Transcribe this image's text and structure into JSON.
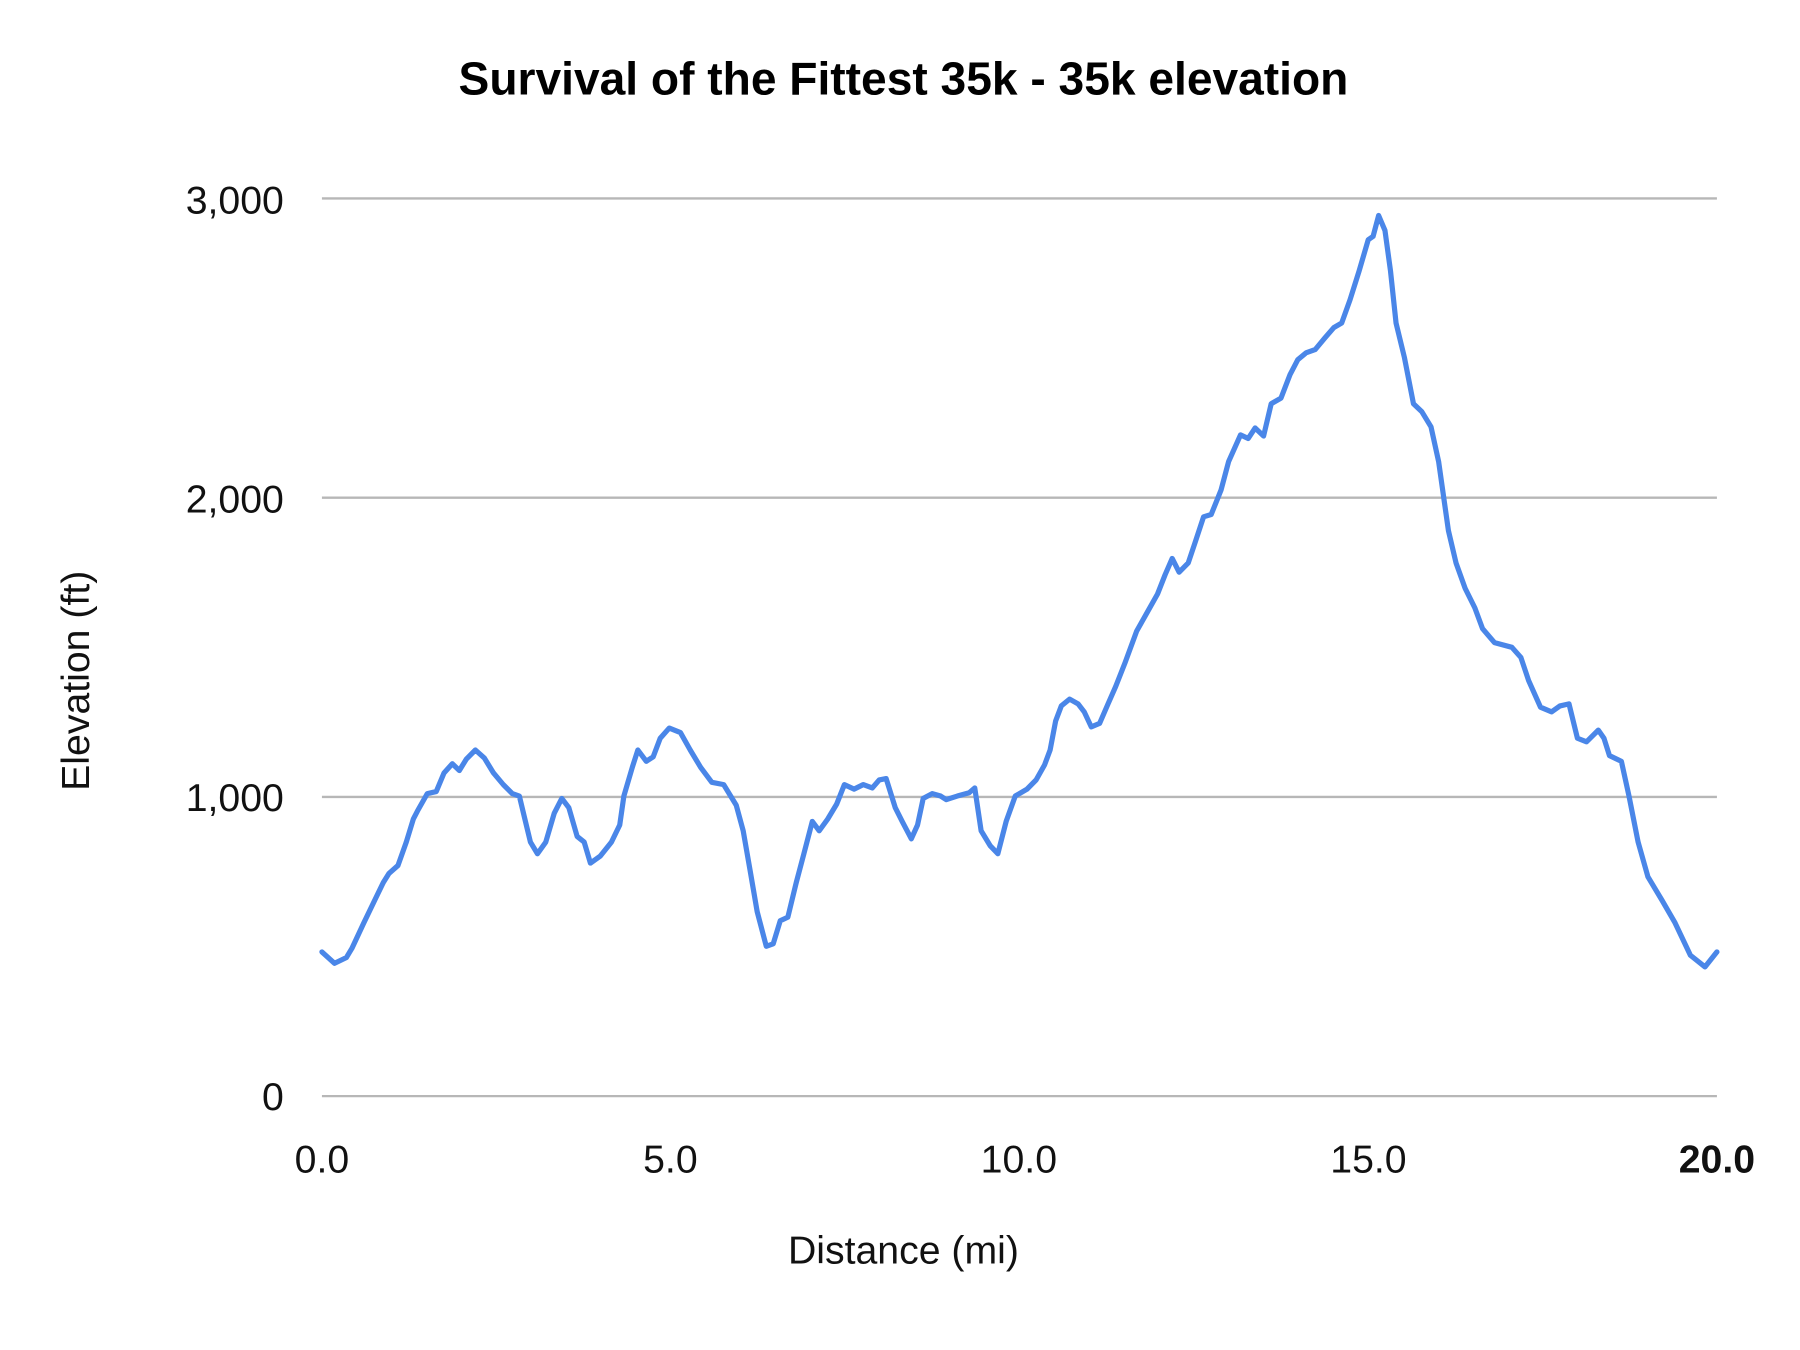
{
  "chart_data": {
    "type": "line",
    "title": "Survival of the Fittest 35k - 35k elevation",
    "xlabel": "Distance (mi)",
    "ylabel": "Elevation (ft)",
    "xlim": [
      0,
      20
    ],
    "ylim": [
      0,
      3000
    ],
    "grid": "horizontal",
    "legend": "none",
    "line_color": "#4a86e8",
    "x_ticks": [
      "0.0",
      "5.0",
      "10.0",
      "15.0",
      "20.0"
    ],
    "x_tick_values": [
      0,
      5,
      10,
      15,
      20
    ],
    "y_ticks": [
      "0",
      "1,000",
      "2,000",
      "3,000"
    ],
    "y_tick_values": [
      0,
      1000,
      2000,
      3000
    ],
    "x": [
      0.0,
      0.18,
      0.35,
      0.43,
      0.6,
      0.76,
      0.88,
      0.96,
      1.09,
      1.21,
      1.31,
      1.37,
      1.51,
      1.64,
      1.75,
      1.87,
      1.97,
      2.07,
      2.2,
      2.33,
      2.46,
      2.6,
      2.73,
      2.83,
      2.91,
      2.99,
      3.09,
      3.21,
      3.33,
      3.44,
      3.54,
      3.66,
      3.76,
      3.85,
      3.99,
      4.15,
      4.27,
      4.33,
      4.45,
      4.53,
      4.65,
      4.75,
      4.85,
      4.98,
      5.14,
      5.28,
      5.43,
      5.59,
      5.76,
      5.94,
      6.04,
      6.14,
      6.24,
      6.37,
      6.47,
      6.57,
      6.68,
      6.8,
      6.91,
      7.03,
      7.13,
      7.25,
      7.38,
      7.49,
      7.63,
      7.76,
      7.89,
      7.99,
      8.09,
      8.22,
      8.32,
      8.45,
      8.54,
      8.62,
      8.75,
      8.87,
      8.95,
      9.11,
      9.28,
      9.36,
      9.45,
      9.58,
      9.69,
      9.81,
      9.94,
      10.11,
      10.24,
      10.36,
      10.44,
      10.52,
      10.6,
      10.72,
      10.84,
      10.93,
      11.03,
      11.15,
      11.27,
      11.38,
      11.51,
      11.68,
      11.84,
      11.98,
      12.09,
      12.19,
      12.29,
      12.42,
      12.52,
      12.64,
      12.75,
      12.89,
      13.0,
      13.17,
      13.28,
      13.38,
      13.5,
      13.61,
      13.75,
      13.88,
      13.99,
      14.11,
      14.24,
      14.38,
      14.51,
      14.62,
      14.74,
      14.87,
      15.0,
      15.07,
      15.15,
      15.24,
      15.32,
      15.4,
      15.52,
      15.65,
      15.77,
      15.9,
      16.01,
      16.15,
      16.26,
      16.39,
      16.53,
      16.64,
      16.81,
      17.06,
      17.19,
      17.3,
      17.47,
      17.63,
      17.75,
      17.88,
      18.0,
      18.13,
      18.3,
      18.38,
      18.46,
      18.63,
      18.74,
      18.87,
      19.01,
      19.21,
      19.4,
      19.62,
      19.83,
      20.0
    ],
    "series": [
      {
        "values": [
          482,
          444,
          463,
          494,
          579,
          656,
          714,
          744,
          771,
          849,
          926,
          953,
          1011,
          1018,
          1080,
          1111,
          1088,
          1126,
          1157,
          1130,
          1080,
          1041,
          1011,
          1003,
          926,
          849,
          810,
          849,
          945,
          995,
          964,
          868,
          849,
          779,
          802,
          849,
          906,
          1003,
          1099,
          1157,
          1119,
          1134,
          1196,
          1230,
          1215,
          1157,
          1099,
          1049,
          1041,
          972,
          887,
          752,
          617,
          501,
          509,
          586,
          598,
          714,
          810,
          918,
          887,
          926,
          976,
          1041,
          1026,
          1041,
          1030,
          1057,
          1061,
          964,
          918,
          860,
          906,
          995,
          1011,
          1003,
          991,
          1003,
          1014,
          1030,
          887,
          837,
          810,
          918,
          1003,
          1026,
          1057,
          1107,
          1157,
          1254,
          1304,
          1327,
          1311,
          1284,
          1234,
          1246,
          1311,
          1369,
          1446,
          1554,
          1620,
          1678,
          1743,
          1797,
          1751,
          1782,
          1851,
          1936,
          1944,
          2025,
          2121,
          2210,
          2198,
          2233,
          2206,
          2314,
          2333,
          2411,
          2461,
          2484,
          2495,
          2534,
          2569,
          2584,
          2661,
          2758,
          2862,
          2873,
          2943,
          2893,
          2758,
          2584,
          2468,
          2314,
          2287,
          2237,
          2121,
          1890,
          1782,
          1697,
          1632,
          1562,
          1516,
          1500,
          1466,
          1389,
          1300,
          1284,
          1304,
          1311,
          1196,
          1184,
          1223,
          1196,
          1138,
          1119,
          1003,
          849,
          733,
          656,
          579,
          471,
          432,
          482
        ]
      }
    ]
  }
}
